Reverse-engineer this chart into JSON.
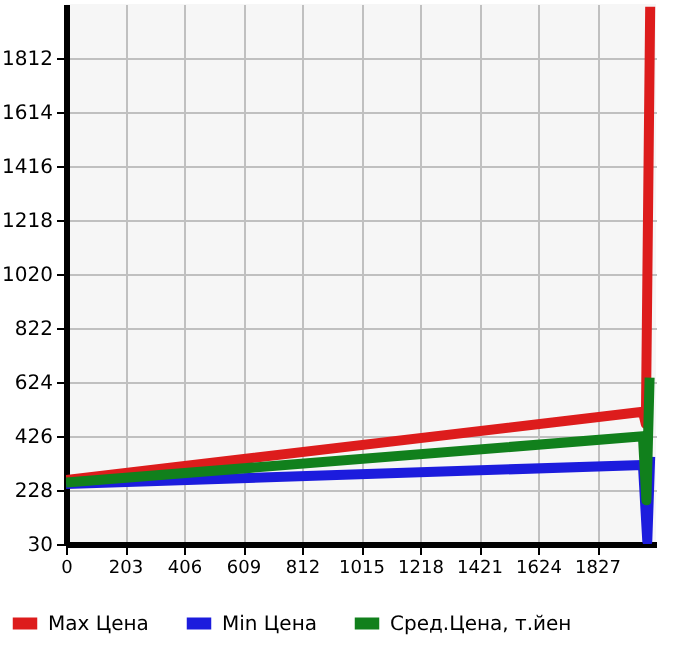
{
  "chart_data": {
    "type": "line",
    "xlim": [
      0,
      2030
    ],
    "ylim": [
      30,
      2010
    ],
    "xticks": [
      0,
      203,
      406,
      609,
      812,
      1015,
      1218,
      1421,
      1624,
      1827
    ],
    "yticks": [
      30,
      228,
      426,
      624,
      822,
      1020,
      1218,
      1416,
      1614,
      1812
    ],
    "grid": true,
    "legend": "bottom",
    "marker": "none",
    "line_style": "solid",
    "series": [
      {
        "name": "Max Цена",
        "color": "#dd1c1c",
        "x": [
          0,
          1985,
          1995,
          2010
        ],
        "values": [
          265,
          515,
          470,
          2000
        ]
      },
      {
        "name": "Min Цена",
        "color": "#1c1cdd",
        "x": [
          0,
          1985,
          2000,
          2010
        ],
        "values": [
          250,
          320,
          40,
          350
        ]
      },
      {
        "name": "Сред.Цена, т.йен",
        "color": "#11801c",
        "x": [
          0,
          1985,
          1997,
          2008
        ],
        "values": [
          255,
          425,
          190,
          640
        ]
      }
    ]
  }
}
